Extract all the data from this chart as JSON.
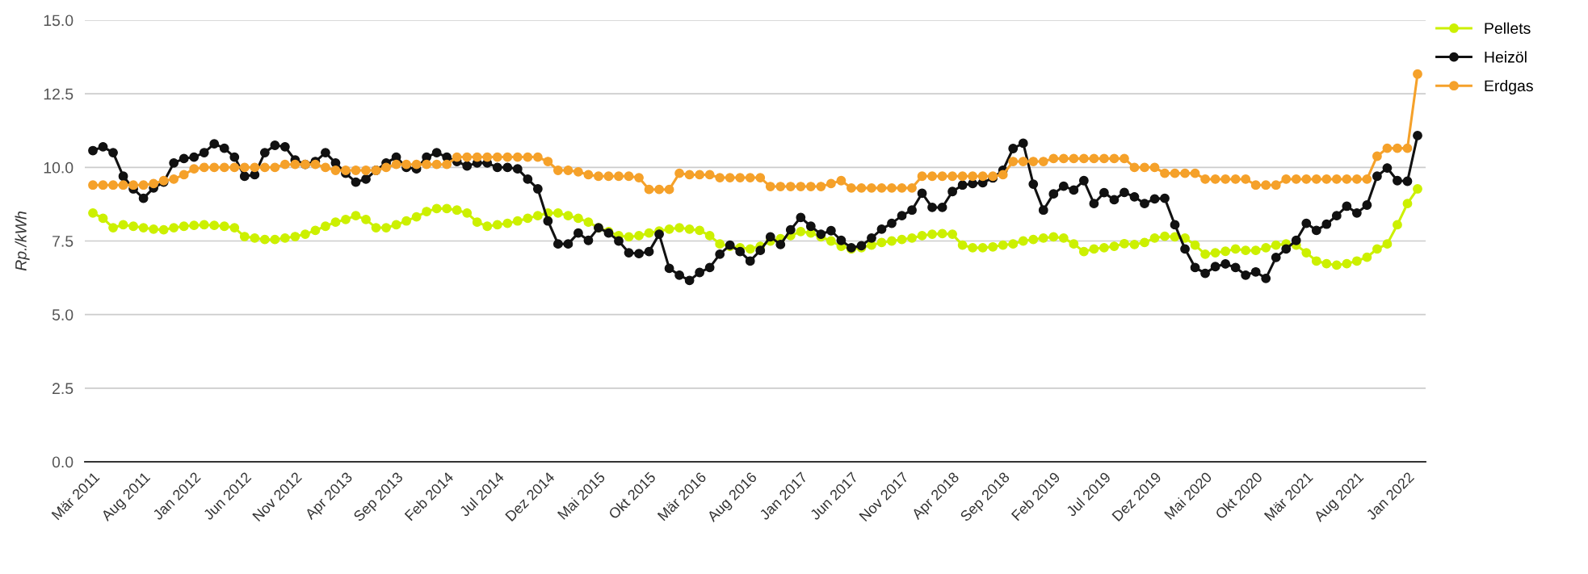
{
  "chart_data": {
    "type": "line",
    "ylabel": "Rp./kWh",
    "categories": [
      "Mär 2011",
      null,
      null,
      null,
      null,
      "Aug 2011",
      null,
      null,
      null,
      null,
      "Jan 2012",
      null,
      null,
      null,
      null,
      "Jun 2012",
      null,
      null,
      null,
      null,
      "Nov 2012",
      null,
      null,
      null,
      null,
      "Apr 2013",
      null,
      null,
      null,
      null,
      "Sep 2013",
      null,
      null,
      null,
      null,
      "Feb 2014",
      null,
      null,
      null,
      null,
      "Jul 2014",
      null,
      null,
      null,
      null,
      "Dez 2014",
      null,
      null,
      null,
      null,
      "Mai 2015",
      null,
      null,
      null,
      null,
      "Okt 2015",
      null,
      null,
      null,
      null,
      "Mär 2016",
      null,
      null,
      null,
      null,
      "Aug 2016",
      null,
      null,
      null,
      null,
      "Jan 2017",
      null,
      null,
      null,
      null,
      "Jun 2017",
      null,
      null,
      null,
      null,
      "Nov 2017",
      null,
      null,
      null,
      null,
      "Apr 2018",
      null,
      null,
      null,
      null,
      "Sep 2018",
      null,
      null,
      null,
      null,
      "Feb 2019",
      null,
      null,
      null,
      null,
      "Jul 2019",
      null,
      null,
      null,
      null,
      "Dez 2019",
      null,
      null,
      null,
      null,
      "Mai 2020",
      null,
      null,
      null,
      null,
      "Okt 2020",
      null,
      null,
      null,
      null,
      "Mär 2021",
      null,
      null,
      null,
      null,
      "Aug 2021",
      null,
      null,
      null,
      null,
      "Jan 2022",
      null
    ],
    "series": [
      {
        "name": "Pellets",
        "color": "#ccf000",
        "values": [
          8.45,
          8.27,
          7.95,
          8.05,
          8.0,
          7.95,
          7.9,
          7.88,
          7.95,
          8.0,
          8.03,
          8.05,
          8.03,
          8.0,
          7.95,
          7.65,
          7.6,
          7.55,
          7.55,
          7.6,
          7.65,
          7.73,
          7.86,
          8.0,
          8.14,
          8.23,
          8.36,
          8.23,
          7.95,
          7.95,
          8.05,
          8.18,
          8.32,
          8.5,
          8.6,
          8.6,
          8.55,
          8.45,
          8.14,
          8.0,
          8.05,
          8.1,
          8.18,
          8.27,
          8.36,
          8.45,
          8.45,
          8.36,
          8.27,
          8.14,
          7.95,
          7.82,
          7.68,
          7.64,
          7.68,
          7.77,
          7.84,
          7.9,
          7.95,
          7.9,
          7.86,
          7.68,
          7.4,
          7.32,
          7.27,
          7.23,
          7.32,
          7.5,
          7.58,
          7.68,
          7.82,
          7.77,
          7.64,
          7.5,
          7.32,
          7.23,
          7.27,
          7.36,
          7.45,
          7.5,
          7.55,
          7.6,
          7.68,
          7.73,
          7.75,
          7.73,
          7.36,
          7.27,
          7.27,
          7.3,
          7.36,
          7.4,
          7.5,
          7.55,
          7.6,
          7.64,
          7.6,
          7.4,
          7.14,
          7.23,
          7.27,
          7.32,
          7.41,
          7.38,
          7.45,
          7.6,
          7.66,
          7.64,
          7.6,
          7.36,
          7.05,
          7.1,
          7.15,
          7.23,
          7.18,
          7.18,
          7.27,
          7.36,
          7.4,
          7.36,
          7.1,
          6.82,
          6.73,
          6.68,
          6.73,
          6.82,
          6.95,
          7.23,
          7.4,
          8.05,
          8.77,
          9.27
        ]
      },
      {
        "name": "Heizöl",
        "color": "#111111",
        "values": [
          10.57,
          10.7,
          10.5,
          9.7,
          9.27,
          8.95,
          9.3,
          9.5,
          10.15,
          10.3,
          10.35,
          10.5,
          10.8,
          10.65,
          10.35,
          9.7,
          9.75,
          10.5,
          10.75,
          10.7,
          10.25,
          10.1,
          10.2,
          10.5,
          10.15,
          9.8,
          9.5,
          9.6,
          9.9,
          10.15,
          10.35,
          10.0,
          9.95,
          10.35,
          10.5,
          10.35,
          10.2,
          10.05,
          10.15,
          10.15,
          10.0,
          10.0,
          9.95,
          9.6,
          9.27,
          8.18,
          7.4,
          7.4,
          7.77,
          7.52,
          7.95,
          7.77,
          7.5,
          7.1,
          7.07,
          7.14,
          7.73,
          6.57,
          6.34,
          6.16,
          6.43,
          6.6,
          7.05,
          7.36,
          7.14,
          6.82,
          7.18,
          7.64,
          7.38,
          7.88,
          8.3,
          8.0,
          7.73,
          7.85,
          7.52,
          7.27,
          7.34,
          7.6,
          7.9,
          8.1,
          8.36,
          8.55,
          9.12,
          8.64,
          8.64,
          9.18,
          9.4,
          9.45,
          9.48,
          9.64,
          9.9,
          10.64,
          10.82,
          9.43,
          8.55,
          9.1,
          9.36,
          9.23,
          9.55,
          8.77,
          9.14,
          8.9,
          9.15,
          9.0,
          8.77,
          8.93,
          8.95,
          8.05,
          7.23,
          6.6,
          6.4,
          6.63,
          6.72,
          6.6,
          6.34,
          6.45,
          6.23,
          6.94,
          7.23,
          7.52,
          8.1,
          7.86,
          8.07,
          8.36,
          8.68,
          8.45,
          8.72,
          9.7,
          9.98,
          9.55,
          9.53,
          11.08
        ]
      },
      {
        "name": "Erdgas",
        "color": "#f5a12a",
        "values": [
          9.4,
          9.4,
          9.4,
          9.4,
          9.4,
          9.4,
          9.45,
          9.55,
          9.6,
          9.75,
          9.95,
          10.0,
          10.0,
          10.0,
          10.0,
          10.0,
          10.0,
          10.0,
          10.0,
          10.1,
          10.1,
          10.1,
          10.1,
          10.0,
          9.9,
          9.9,
          9.9,
          9.9,
          9.9,
          10.0,
          10.1,
          10.1,
          10.1,
          10.1,
          10.1,
          10.1,
          10.35,
          10.35,
          10.35,
          10.35,
          10.35,
          10.35,
          10.35,
          10.35,
          10.35,
          10.2,
          9.9,
          9.9,
          9.85,
          9.75,
          9.7,
          9.7,
          9.7,
          9.7,
          9.65,
          9.25,
          9.25,
          9.25,
          9.8,
          9.75,
          9.75,
          9.75,
          9.65,
          9.65,
          9.65,
          9.65,
          9.65,
          9.35,
          9.35,
          9.35,
          9.35,
          9.35,
          9.35,
          9.45,
          9.55,
          9.3,
          9.3,
          9.3,
          9.3,
          9.3,
          9.3,
          9.3,
          9.7,
          9.7,
          9.7,
          9.7,
          9.7,
          9.7,
          9.7,
          9.7,
          9.75,
          10.2,
          10.2,
          10.2,
          10.2,
          10.3,
          10.3,
          10.3,
          10.3,
          10.3,
          10.3,
          10.3,
          10.3,
          10.0,
          10.0,
          10.0,
          9.8,
          9.8,
          9.8,
          9.8,
          9.6,
          9.6,
          9.6,
          9.6,
          9.6,
          9.4,
          9.4,
          9.4,
          9.6,
          9.6,
          9.6,
          9.6,
          9.6,
          9.6,
          9.6,
          9.6,
          9.6,
          10.38,
          10.65,
          10.65,
          10.65,
          13.17
        ]
      }
    ],
    "ylim": [
      0,
      15
    ],
    "yticks": [
      {
        "value": 0,
        "label": "0.0"
      },
      {
        "value": 2.5,
        "label": "2.5"
      },
      {
        "value": 5,
        "label": "5.0"
      },
      {
        "value": 7.5,
        "label": "7.5"
      },
      {
        "value": 10,
        "label": "10.0"
      },
      {
        "value": 12.5,
        "label": "12.5"
      },
      {
        "value": 15,
        "label": "15.0"
      }
    ],
    "grid": "y",
    "legend": "top right",
    "marker": "circle",
    "line_style": "solid"
  }
}
